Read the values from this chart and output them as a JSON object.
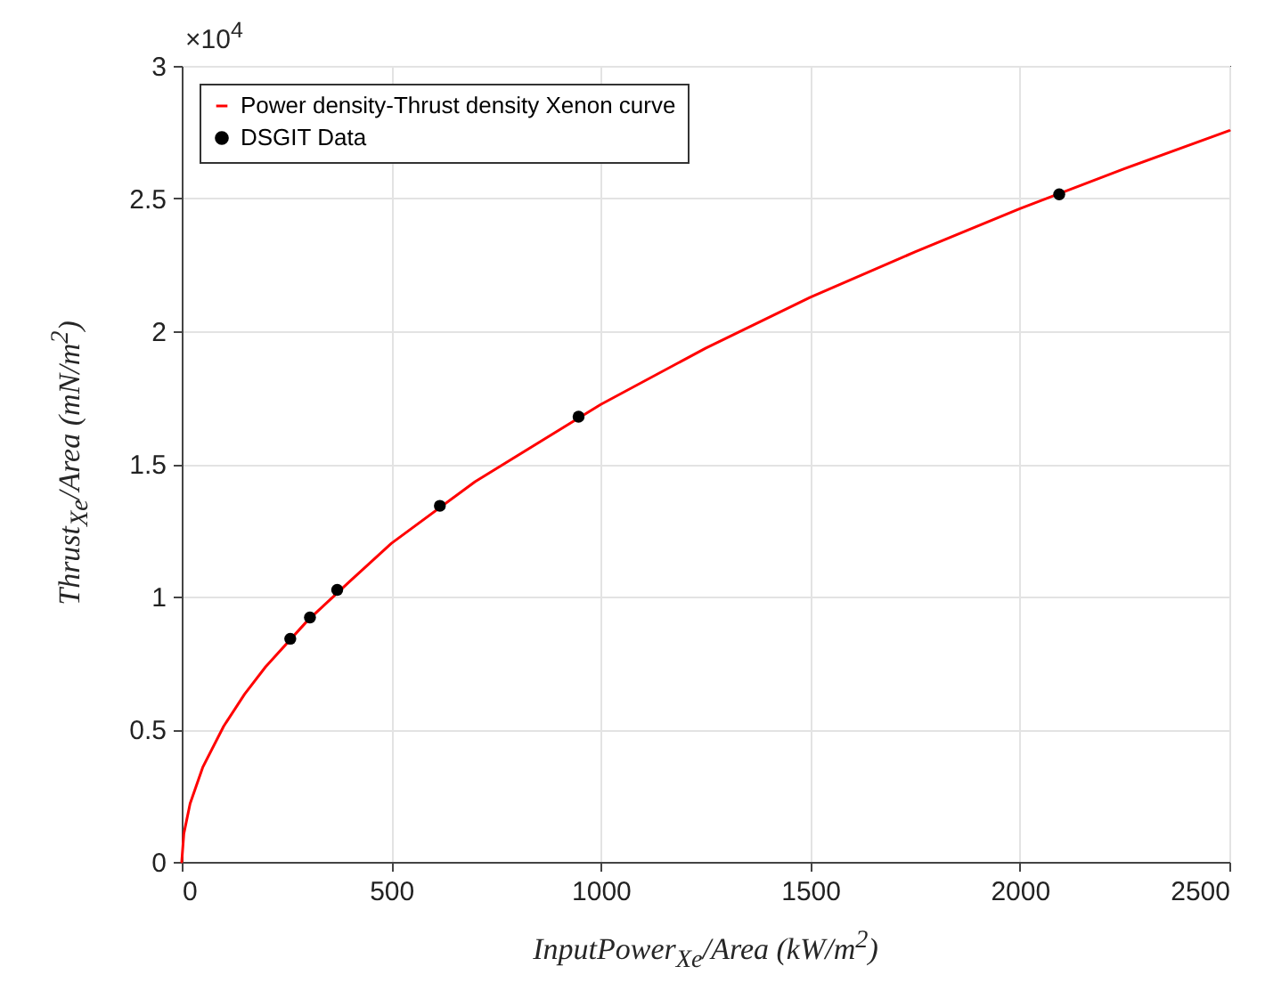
{
  "chart_data": {
    "type": "line",
    "xlabel": "InputPower$_{Xe}$/Area (kW/m$^{2}$)",
    "ylabel": "Thrust$_{Xe}$/Area (mN/m$^{2}$)",
    "annotations": [
      "×10$^{4}$"
    ],
    "xlim": [
      0,
      2500
    ],
    "xticks": [
      0,
      500,
      1000,
      1500,
      2000,
      2500
    ],
    "ylim": [
      0,
      3
    ],
    "yticks": [
      0,
      0.5,
      1,
      1.5,
      2,
      2.5,
      3
    ],
    "grid": true,
    "legend": "top left",
    "series": [
      {
        "name": "Power density-Thrust density Xenon curve",
        "color": "#ff0000",
        "marker": "none",
        "x": [
          0,
          5,
          20,
          50,
          100,
          150,
          200,
          300,
          400,
          500,
          700,
          1000,
          1250,
          1500,
          1750,
          2000,
          2250,
          2500
        ],
        "values": [
          0,
          0.106,
          0.22,
          0.356,
          0.511,
          0.632,
          0.735,
          0.909,
          1.056,
          1.2,
          1.433,
          1.724,
          1.936,
          2.128,
          2.299,
          2.462,
          2.613,
          2.756
        ]
      },
      {
        "name": "DSGIT Data",
        "type": "scatter",
        "color": "#000000",
        "marker": "circle",
        "x": [
          259,
          306,
          371,
          616,
          947,
          2094
        ],
        "values": [
          0.841,
          0.921,
          1.025,
          1.342,
          1.678,
          2.516
        ]
      }
    ]
  }
}
